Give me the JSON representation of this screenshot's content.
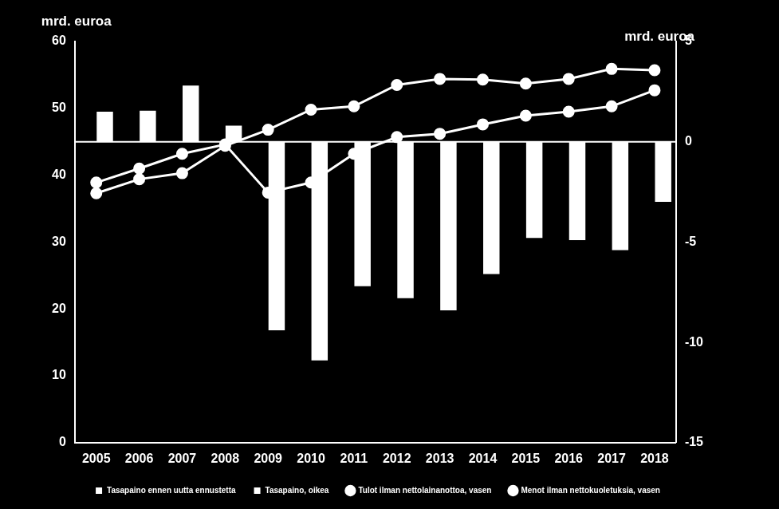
{
  "chart_data": {
    "type": "bar",
    "categories": [
      "2005",
      "2006",
      "2007",
      "2008",
      "2009",
      "2010",
      "2011",
      "2012",
      "2013",
      "2014",
      "2015",
      "2016",
      "2017",
      "2018"
    ],
    "ylabel": "mrd. euroa",
    "y2label": "mrd. euroa",
    "ylim": [
      0,
      60
    ],
    "yticks": [
      0,
      10,
      20,
      30,
      40,
      50,
      60
    ],
    "y2lim": [
      -15,
      5
    ],
    "y2ticks": [
      -15,
      -10,
      -5,
      0,
      5
    ],
    "grid": false,
    "legend": "bottom",
    "series": [
      {
        "name": "Tasapaino ennen uutta ennustetta",
        "type": "bar",
        "axis": "y2",
        "color": "#ffffff",
        "values": [
          null,
          null,
          null,
          null,
          null,
          null,
          null,
          null,
          null,
          null,
          null,
          null,
          null,
          null
        ]
      },
      {
        "name": "Tasapaino, oikea",
        "type": "bar",
        "axis": "y2",
        "color": "#ffffff",
        "values": [
          1.5,
          1.55,
          2.8,
          0.8,
          -9.4,
          -10.9,
          -7.2,
          -7.8,
          -8.4,
          -6.6,
          -4.8,
          -4.9,
          -5.4,
          -3.0
        ]
      },
      {
        "name": "Tulot ilman nettolainanottoa, vasen",
        "type": "line",
        "color": "#ffffff",
        "marker": "circle",
        "values": [
          38.9,
          41.0,
          43.2,
          44.6,
          37.4,
          38.9,
          43.2,
          45.7,
          46.2,
          47.6,
          48.9,
          49.5,
          50.3,
          52.7
        ]
      },
      {
        "name": "Menot ilman nettokuoletuksia, vasen",
        "type": "line",
        "color": "#ffffff",
        "marker": "circle",
        "values": [
          37.3,
          39.4,
          40.3,
          44.4,
          46.8,
          49.8,
          50.3,
          53.5,
          54.4,
          54.3,
          53.7,
          54.4,
          55.9,
          55.7
        ]
      }
    ]
  }
}
